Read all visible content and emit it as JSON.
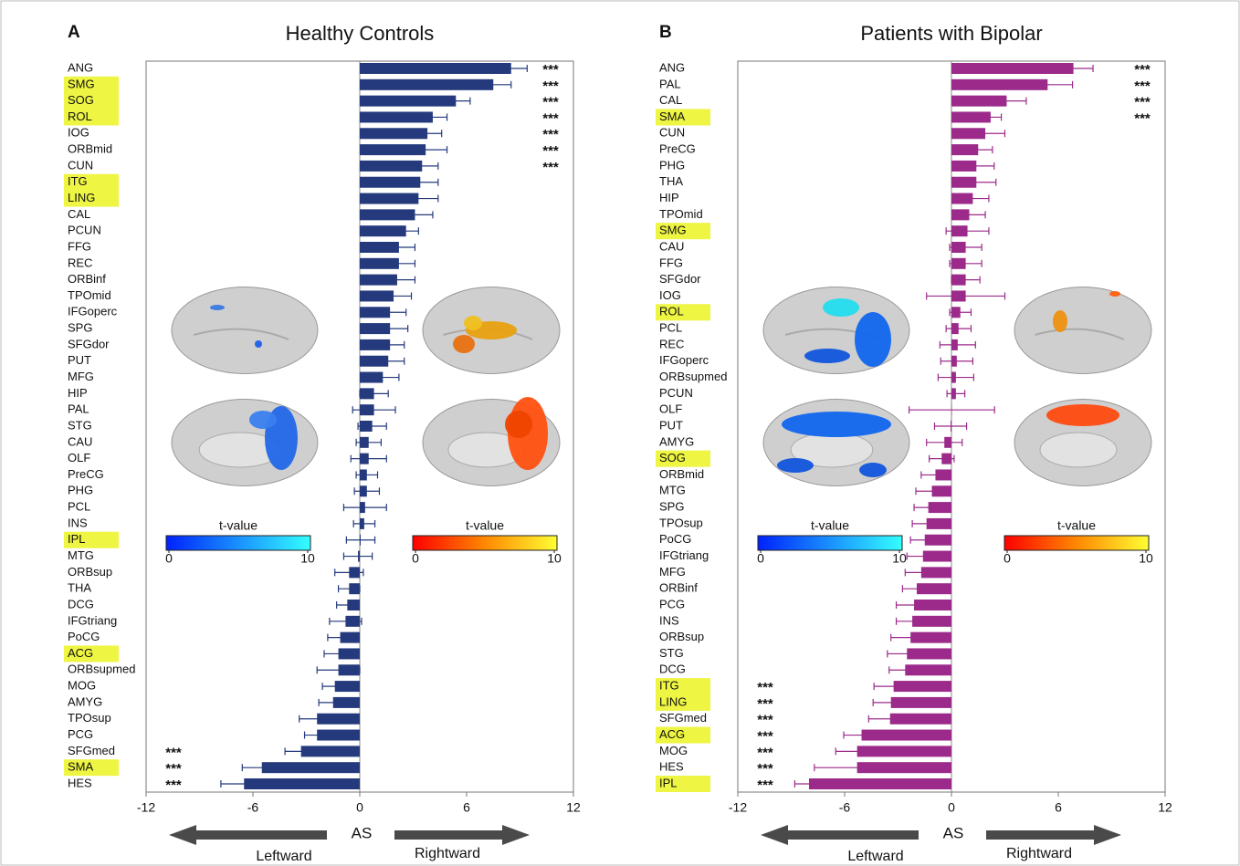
{
  "chart_data": [
    {
      "type": "bar",
      "orientation": "horizontal",
      "panel_label": "A",
      "title": "Healthy Controls",
      "categories": [
        "ANG",
        "SMG",
        "SOG",
        "ROL",
        "IOG",
        "ORBmid",
        "CUN",
        "ITG",
        "LING",
        "CAL",
        "PCUN",
        "FFG",
        "REC",
        "ORBinf",
        "TPOmid",
        "IFGoperc",
        "SPG",
        "SFGdor",
        "PUT",
        "MFG",
        "HIP",
        "PAL",
        "STG",
        "CAU",
        "OLF",
        "PreCG",
        "PHG",
        "PCL",
        "INS",
        "IPL",
        "MTG",
        "ORBsup",
        "THA",
        "DCG",
        "IFGtriang",
        "PoCG",
        "ACG",
        "ORBsupmed",
        "MOG",
        "AMYG",
        "TPOsup",
        "PCG",
        "SFGmed",
        "SMA",
        "HES"
      ],
      "values": [
        8.5,
        7.5,
        5.4,
        4.1,
        3.8,
        3.7,
        3.5,
        3.4,
        3.3,
        3.1,
        2.6,
        2.2,
        2.2,
        2.1,
        1.9,
        1.7,
        1.7,
        1.7,
        1.6,
        1.3,
        0.8,
        0.8,
        0.7,
        0.5,
        0.5,
        0.4,
        0.4,
        0.3,
        0.25,
        0.05,
        -0.1,
        -0.6,
        -0.6,
        -0.7,
        -0.8,
        -1.1,
        -1.2,
        -1.2,
        -1.4,
        -1.5,
        -2.4,
        -2.4,
        -3.3,
        -5.5,
        -6.5
      ],
      "errors": [
        0.9,
        1.0,
        0.8,
        0.8,
        0.8,
        1.2,
        0.9,
        1.0,
        1.1,
        1.0,
        0.7,
        0.9,
        0.9,
        1.0,
        1.0,
        0.9,
        1.0,
        0.8,
        0.9,
        0.9,
        0.8,
        1.2,
        0.8,
        0.7,
        1.0,
        0.6,
        0.7,
        1.2,
        0.6,
        0.8,
        0.8,
        0.8,
        0.6,
        0.6,
        0.9,
        0.7,
        0.8,
        1.2,
        0.7,
        0.8,
        1.0,
        0.7,
        0.9,
        1.1,
        1.3
      ],
      "significance": [
        "***",
        "***",
        "***",
        "***",
        "***",
        "***",
        "***",
        null,
        null,
        null,
        null,
        null,
        null,
        null,
        null,
        null,
        null,
        null,
        null,
        null,
        null,
        null,
        null,
        null,
        null,
        null,
        null,
        null,
        null,
        null,
        null,
        null,
        null,
        null,
        null,
        null,
        null,
        null,
        null,
        null,
        null,
        null,
        "***",
        "***",
        "***"
      ],
      "highlight": [
        1,
        2,
        3,
        7,
        8,
        29,
        36,
        43
      ],
      "highlight_color": "#eef542",
      "highlight_text_color": "#e8262b",
      "color": "#253a7c",
      "xlim": [
        -12,
        12
      ],
      "xticks": [
        -12,
        -6,
        0,
        6,
        12
      ],
      "colorbars": [
        {
          "label": "t-value",
          "lim": [
            0,
            10
          ],
          "ticks": [
            0,
            10
          ],
          "colors": [
            "#0022ff",
            "#33ffff"
          ]
        },
        {
          "label": "t-value",
          "lim": [
            0,
            10
          ],
          "ticks": [
            0,
            10
          ],
          "colors": [
            "#ff0000",
            "#ff8800",
            "#ffff33"
          ]
        }
      ],
      "axis_label": "AS",
      "left_label": "Leftward",
      "right_label": "Rightward"
    },
    {
      "type": "bar",
      "orientation": "horizontal",
      "panel_label": "B",
      "title": "Patients with Bipolar",
      "categories": [
        "ANG",
        "PAL",
        "CAL",
        "SMA",
        "CUN",
        "PreCG",
        "PHG",
        "THA",
        "HIP",
        "TPOmid",
        "SMG",
        "CAU",
        "FFG",
        "SFGdor",
        "IOG",
        "ROL",
        "PCL",
        "REC",
        "IFGoperc",
        "ORBsupmed",
        "PCUN",
        "OLF",
        "PUT",
        "AMYG",
        "SOG",
        "ORBmid",
        "MTG",
        "SPG",
        "TPOsup",
        "PoCG",
        "IFGtriang",
        "MFG",
        "ORBinf",
        "PCG",
        "INS",
        "ORBsup",
        "STG",
        "DCG",
        "ITG",
        "LING",
        "SFGmed",
        "ACG",
        "MOG",
        "HES",
        "IPL"
      ],
      "values": [
        6.85,
        5.4,
        3.1,
        2.2,
        1.9,
        1.5,
        1.4,
        1.4,
        1.2,
        1.0,
        0.9,
        0.8,
        0.8,
        0.8,
        0.8,
        0.5,
        0.4,
        0.35,
        0.3,
        0.25,
        0.25,
        0.02,
        -0.05,
        -0.4,
        -0.55,
        -0.9,
        -1.1,
        -1.3,
        -1.4,
        -1.5,
        -1.6,
        -1.7,
        -1.95,
        -2.1,
        -2.2,
        -2.3,
        -2.5,
        -2.6,
        -3.25,
        -3.4,
        -3.45,
        -5.05,
        -5.3,
        -5.3,
        -8.0
      ],
      "errors": [
        1.1,
        1.4,
        1.1,
        0.6,
        1.1,
        0.8,
        1.0,
        1.1,
        0.9,
        0.9,
        1.2,
        0.9,
        0.9,
        0.8,
        2.2,
        0.6,
        0.7,
        1.0,
        0.9,
        1.0,
        0.5,
        2.4,
        0.9,
        1.0,
        0.7,
        0.8,
        0.9,
        0.8,
        0.8,
        0.8,
        0.9,
        0.9,
        0.8,
        1.0,
        0.9,
        1.1,
        1.1,
        0.9,
        1.1,
        1.0,
        1.2,
        1.0,
        1.2,
        2.4,
        0.8
      ],
      "significance": [
        "***",
        "***",
        "***",
        "***",
        null,
        null,
        null,
        null,
        null,
        null,
        null,
        null,
        null,
        null,
        null,
        null,
        null,
        null,
        null,
        null,
        null,
        null,
        null,
        null,
        null,
        null,
        null,
        null,
        null,
        null,
        null,
        null,
        null,
        null,
        null,
        null,
        null,
        null,
        "***",
        "***",
        "***",
        "***",
        "***",
        "***",
        "***"
      ],
      "highlight": [
        3,
        10,
        15,
        24,
        38,
        39,
        41,
        44
      ],
      "highlight_color": "#eef542",
      "highlight_text_color": "#e8262b",
      "color": "#9b2a8a",
      "xlim": [
        -12,
        12
      ],
      "xticks": [
        -12,
        -6,
        0,
        6,
        12
      ],
      "colorbars": [
        {
          "label": "t-value",
          "lim": [
            0,
            10
          ],
          "ticks": [
            0,
            10
          ],
          "colors": [
            "#0022ff",
            "#33ffff"
          ]
        },
        {
          "label": "t-value",
          "lim": [
            0,
            10
          ],
          "ticks": [
            0,
            10
          ],
          "colors": [
            "#ff0000",
            "#ff8800",
            "#ffff33"
          ]
        }
      ],
      "axis_label": "AS",
      "left_label": "Leftward",
      "right_label": "Rightward"
    }
  ]
}
